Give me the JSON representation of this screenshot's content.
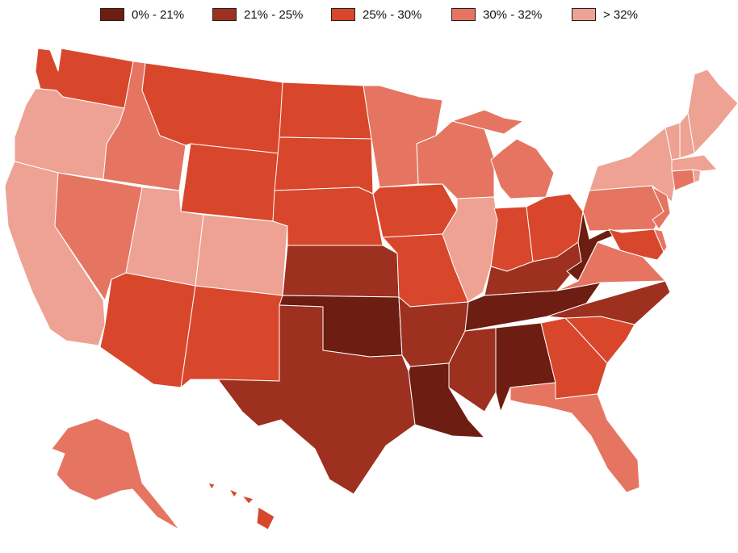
{
  "legend": {
    "bins": [
      {
        "label": "0% - 21%",
        "color": "#6d1d12"
      },
      {
        "label": "21% - 25%",
        "color": "#9e3020"
      },
      {
        "label": "25% - 30%",
        "color": "#d8472b"
      },
      {
        "label": "30% - 32%",
        "color": "#e57561"
      },
      {
        "label": "> 32%",
        "color": "#eda293"
      }
    ]
  },
  "states": [
    {
      "name": "WA",
      "bin": 2
    },
    {
      "name": "OR",
      "bin": 4
    },
    {
      "name": "CA",
      "bin": 4
    },
    {
      "name": "ID",
      "bin": 3
    },
    {
      "name": "NV",
      "bin": 3
    },
    {
      "name": "MT",
      "bin": 2
    },
    {
      "name": "WY",
      "bin": 2
    },
    {
      "name": "UT",
      "bin": 4
    },
    {
      "name": "CO",
      "bin": 4
    },
    {
      "name": "AZ",
      "bin": 2
    },
    {
      "name": "NM",
      "bin": 2
    },
    {
      "name": "ND",
      "bin": 2
    },
    {
      "name": "SD",
      "bin": 2
    },
    {
      "name": "NE",
      "bin": 2
    },
    {
      "name": "KS",
      "bin": 1
    },
    {
      "name": "OK",
      "bin": 0
    },
    {
      "name": "TX",
      "bin": 1
    },
    {
      "name": "MN",
      "bin": 3
    },
    {
      "name": "IA",
      "bin": 2
    },
    {
      "name": "MO",
      "bin": 2
    },
    {
      "name": "AR",
      "bin": 1
    },
    {
      "name": "LA",
      "bin": 0
    },
    {
      "name": "WI",
      "bin": 3
    },
    {
      "name": "IL",
      "bin": 4
    },
    {
      "name": "MI",
      "bin": 3
    },
    {
      "name": "IN",
      "bin": 2
    },
    {
      "name": "OH",
      "bin": 2
    },
    {
      "name": "KY",
      "bin": 1
    },
    {
      "name": "TN",
      "bin": 0
    },
    {
      "name": "MS",
      "bin": 1
    },
    {
      "name": "AL",
      "bin": 0
    },
    {
      "name": "GA",
      "bin": 2
    },
    {
      "name": "FL",
      "bin": 3
    },
    {
      "name": "SC",
      "bin": 2
    },
    {
      "name": "NC",
      "bin": 1
    },
    {
      "name": "VA",
      "bin": 3
    },
    {
      "name": "WV",
      "bin": 0
    },
    {
      "name": "PA",
      "bin": 3
    },
    {
      "name": "NY",
      "bin": 4
    },
    {
      "name": "NJ",
      "bin": 3
    },
    {
      "name": "MD",
      "bin": 2
    },
    {
      "name": "DE",
      "bin": 3
    },
    {
      "name": "CT",
      "bin": 3
    },
    {
      "name": "RI",
      "bin": 4
    },
    {
      "name": "MA",
      "bin": 4
    },
    {
      "name": "VT",
      "bin": 4
    },
    {
      "name": "NH",
      "bin": 4
    },
    {
      "name": "ME",
      "bin": 4
    },
    {
      "name": "AK",
      "bin": 3
    },
    {
      "name": "HI",
      "bin": 2
    }
  ]
}
